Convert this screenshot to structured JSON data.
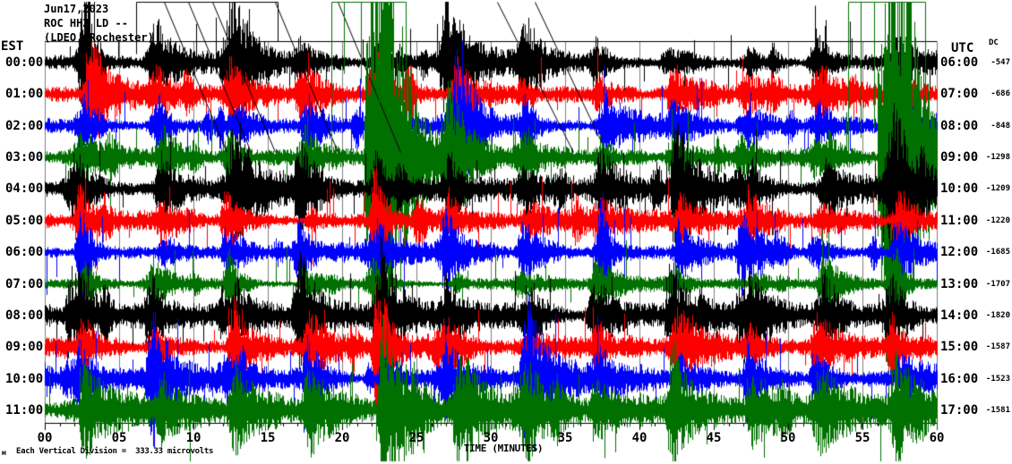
{
  "header": {
    "date_line": "Jun17,2023",
    "station_line": "ROC HHZ LD --",
    "network_line": "(LDEO, Rochester)"
  },
  "axes": {
    "left_label": "EST",
    "right_label": "UTC",
    "dc_label": "DC",
    "x_title": "TIME (MINUTES)",
    "x_tick_labels": [
      "00",
      "05",
      "10",
      "15",
      "20",
      "25",
      "30",
      "35",
      "40",
      "45",
      "50",
      "55",
      "60"
    ]
  },
  "footer": {
    "scale_note": "Each Vertical Division =  333.33 microvolts",
    "corner_mark": "м"
  },
  "chart_data": {
    "type": "line",
    "title": "Helicorder record ROC HHZ LD -- (LDEO, Rochester) Jun17,2023",
    "xlabel": "TIME (MINUTES)",
    "x_range_minutes": [
      0,
      60
    ],
    "x_major_tick_minutes": 5,
    "x_minor_tick_minutes": 1,
    "vertical_division_microvolts": 333.33,
    "grid_color": "#808080",
    "trace_color_cycle": [
      "#000000",
      "#ff0000",
      "#0000ff",
      "#007000"
    ],
    "recurring_bursts": {
      "start_minute": 2.6,
      "period_minutes": 4.97
    },
    "rows": [
      {
        "est": "00:00",
        "utc": "06:00",
        "dc": "-547",
        "color": "#000000"
      },
      {
        "est": "01:00",
        "utc": "07:00",
        "dc": "-686",
        "color": "#ff0000"
      },
      {
        "est": "02:00",
        "utc": "08:00",
        "dc": "-848",
        "color": "#0000ff"
      },
      {
        "est": "03:00",
        "utc": "09:00",
        "dc": "-1298",
        "color": "#007000"
      },
      {
        "est": "04:00",
        "utc": "10:00",
        "dc": "-1209",
        "color": "#000000"
      },
      {
        "est": "05:00",
        "utc": "11:00",
        "dc": "-1220",
        "color": "#ff0000"
      },
      {
        "est": "06:00",
        "utc": "12:00",
        "dc": "-1685",
        "color": "#0000ff"
      },
      {
        "est": "07:00",
        "utc": "13:00",
        "dc": "-1707",
        "color": "#007000"
      },
      {
        "est": "08:00",
        "utc": "14:00",
        "dc": "-1820",
        "color": "#000000"
      },
      {
        "est": "09:00",
        "utc": "15:00",
        "dc": "-1587",
        "color": "#ff0000"
      },
      {
        "est": "10:00",
        "utc": "16:00",
        "dc": "-1523",
        "color": "#0000ff"
      },
      {
        "est": "11:00",
        "utc": "17:00",
        "dc": "-1581",
        "color": "#007000"
      }
    ]
  }
}
